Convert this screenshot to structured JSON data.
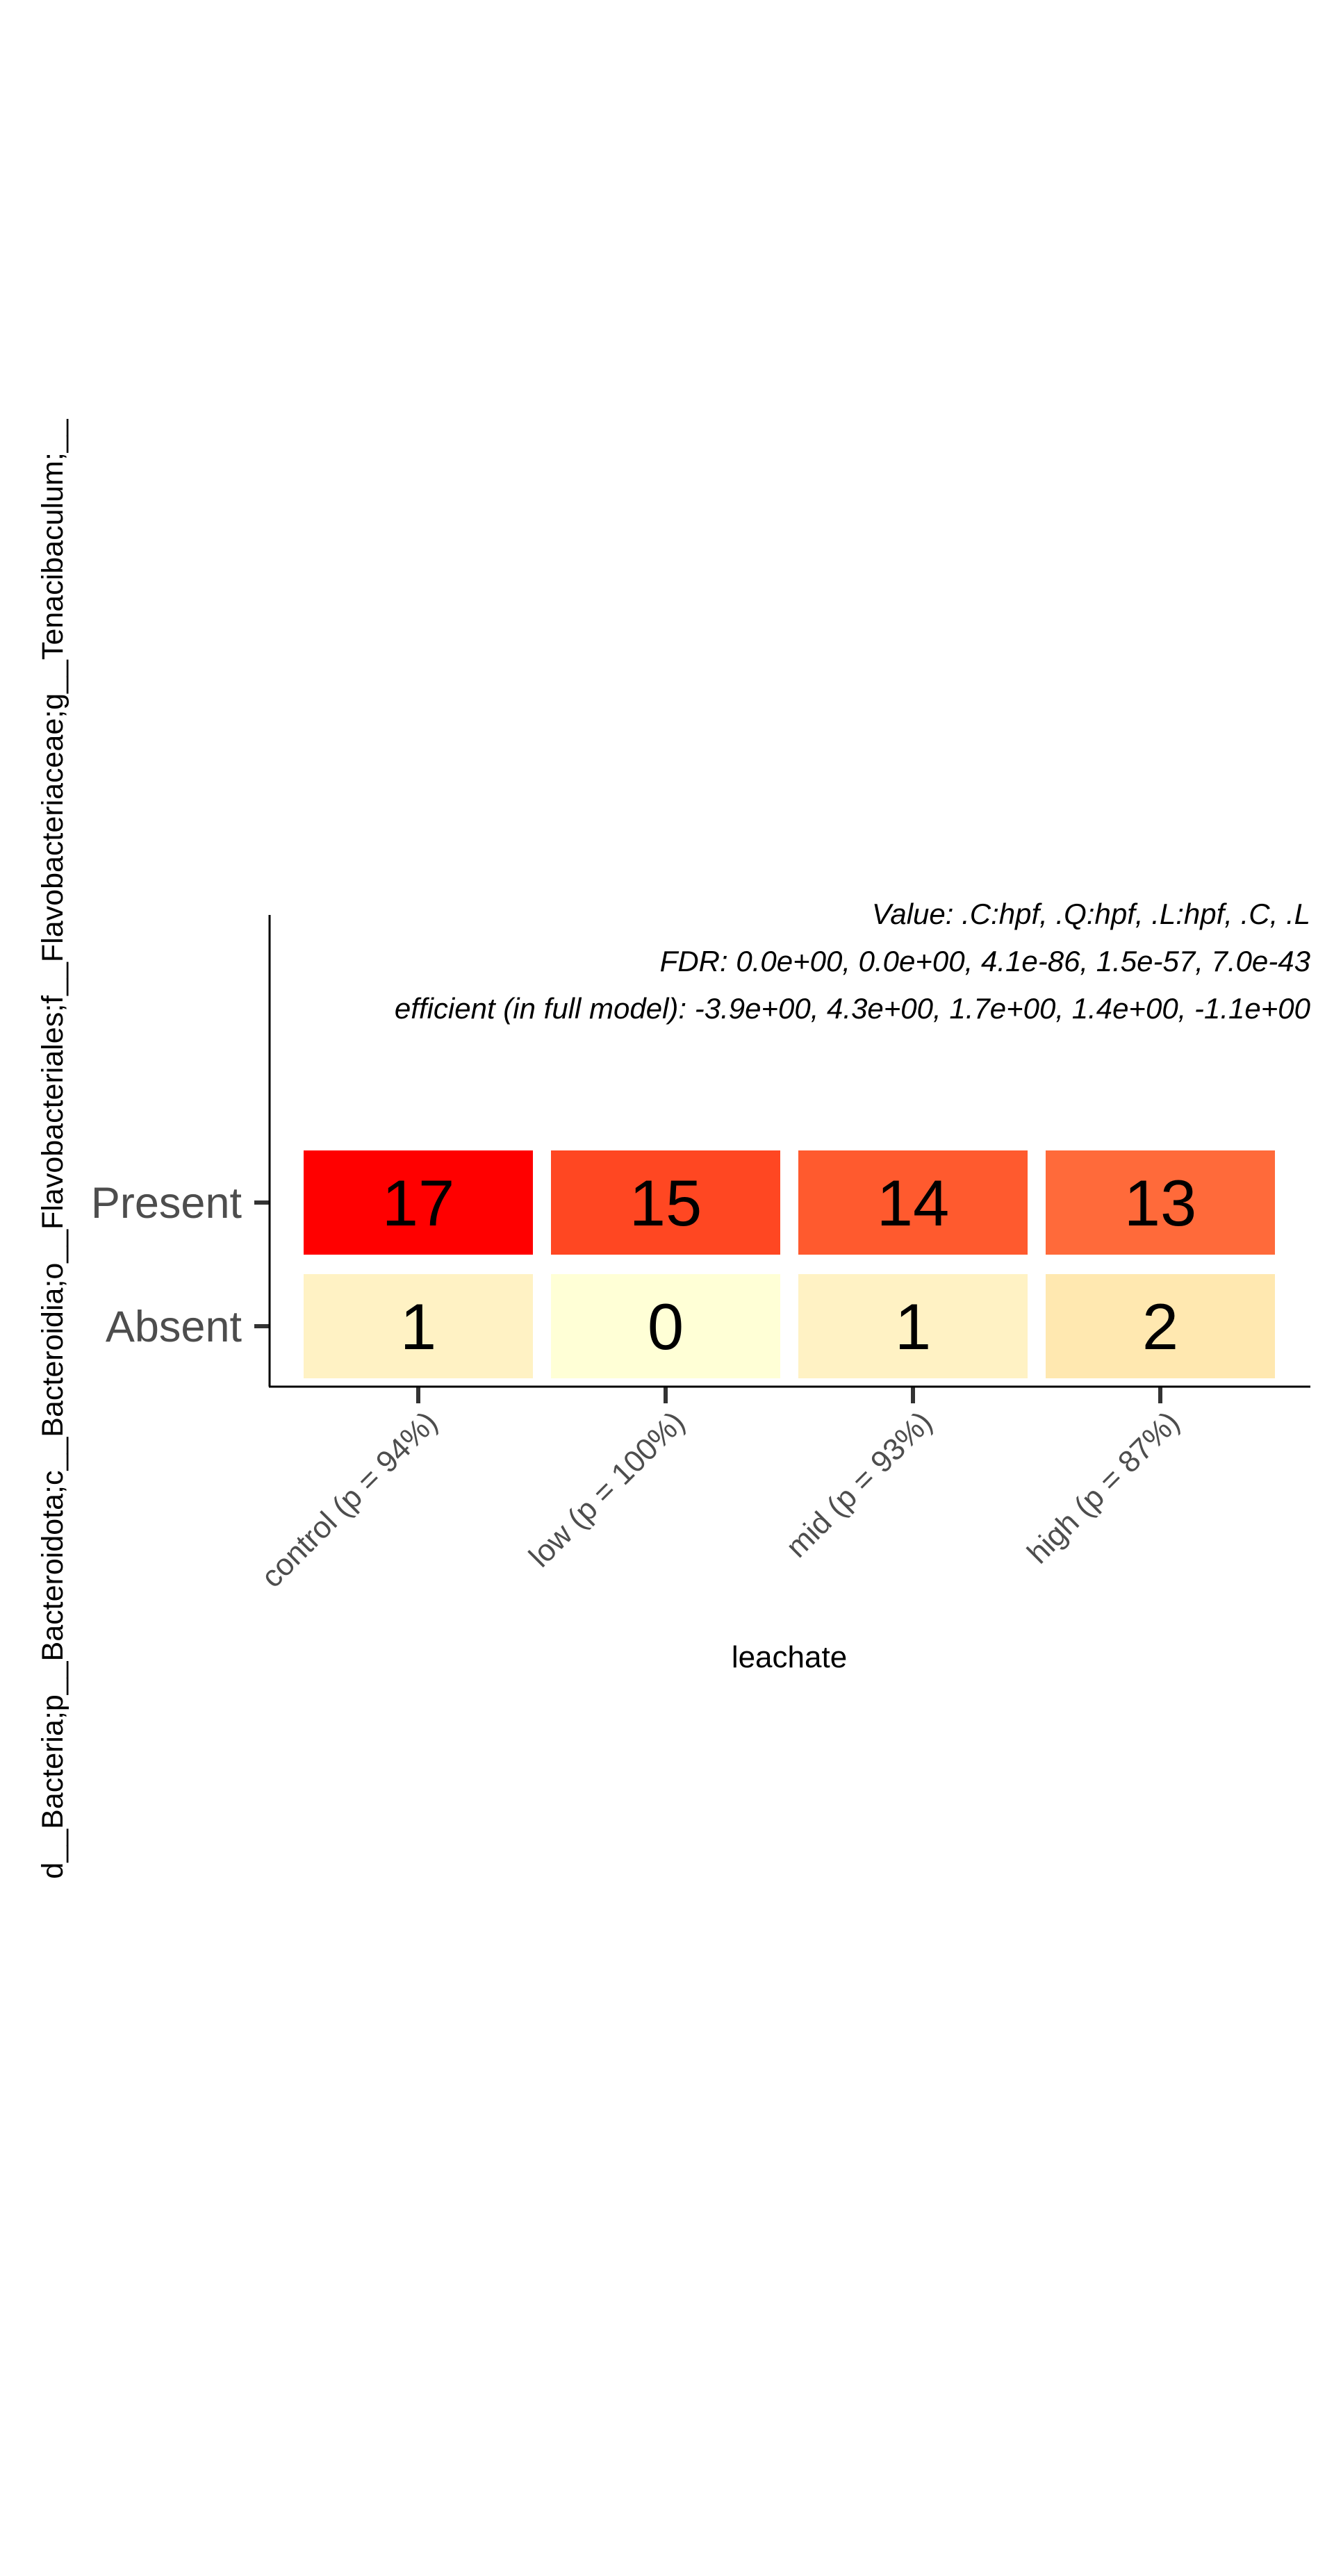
{
  "chart_data": {
    "type": "heatmap",
    "title": "",
    "ylabel": "d__Bacteria;p__Bacteroidota;c__Bacteroidia;o__Flavobacteriales;f__Flavobacteriaceae;g__Tenacibaculum;__",
    "xlabel": "leachate",
    "annotations": [
      "Value: .C:hpf, .Q:hpf, .L:hpf, .C, .L",
      "FDR: 0.0e+00, 0.0e+00, 4.1e-86, 1.5e-57, 7.0e-43",
      "efficient (in full model): -3.9e+00, 4.3e+00, 1.7e+00, 1.4e+00, -1.1e+00"
    ],
    "categories": [
      "control (p = 94%)",
      "low (p = 100%)",
      "mid (p = 93%)",
      "high (p = 87%)"
    ],
    "rows": [
      "Present",
      "Absent"
    ],
    "values": [
      [
        17,
        15,
        14,
        13
      ],
      [
        1,
        0,
        1,
        2
      ]
    ],
    "colors": [
      [
        "#ff0000",
        "#ff4722",
        "#ff5a2e",
        "#ff6a3a"
      ],
      [
        "#fff2c4",
        "#ffffd6",
        "#fff2c4",
        "#ffe8b0"
      ]
    ],
    "grid": false,
    "legend": "none"
  }
}
